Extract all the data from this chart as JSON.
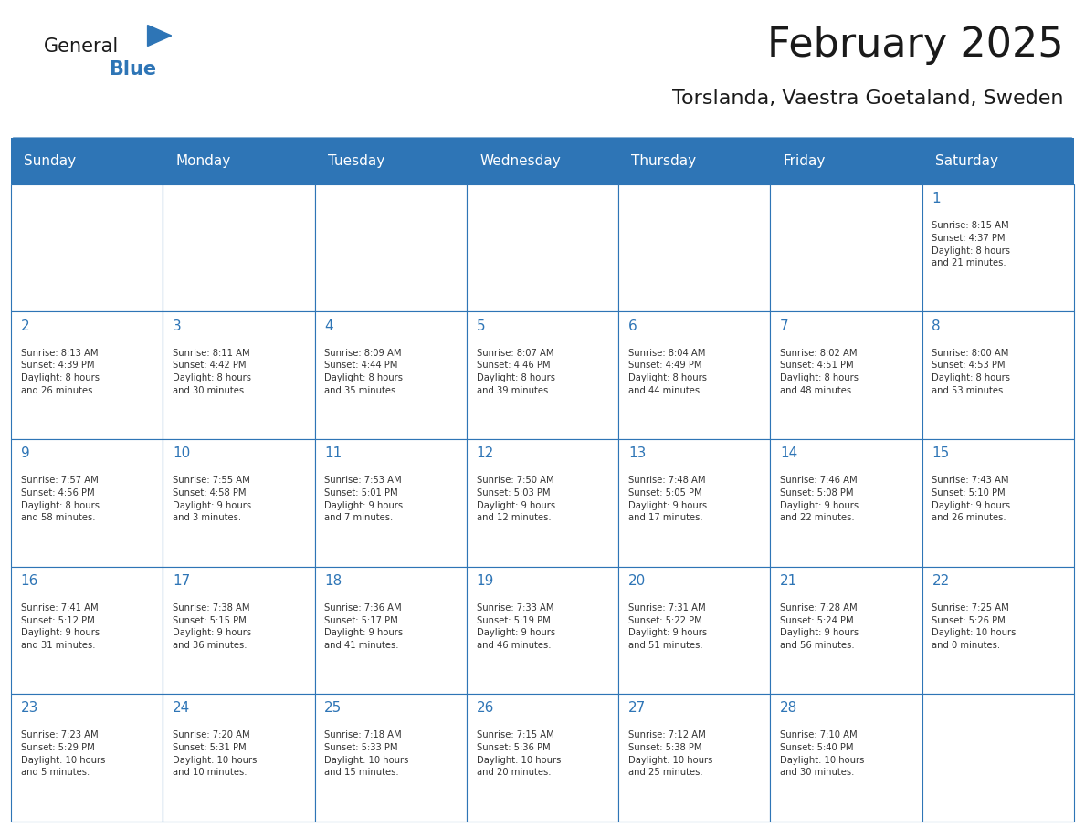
{
  "title": "February 2025",
  "subtitle": "Torslanda, Vaestra Goetaland, Sweden",
  "days_of_week": [
    "Sunday",
    "Monday",
    "Tuesday",
    "Wednesday",
    "Thursday",
    "Friday",
    "Saturday"
  ],
  "header_bg": "#2E75B6",
  "header_text": "#FFFFFF",
  "cell_bg": "#FFFFFF",
  "cell_border": "#2E75B6",
  "day_num_color": "#2E75B6",
  "info_color": "#333333",
  "title_color": "#1a1a1a",
  "subtitle_color": "#1a1a1a",
  "logo_general_color": "#1a1a1a",
  "logo_blue_color": "#2E75B6",
  "calendar_data": [
    [
      {
        "day": "",
        "info": ""
      },
      {
        "day": "",
        "info": ""
      },
      {
        "day": "",
        "info": ""
      },
      {
        "day": "",
        "info": ""
      },
      {
        "day": "",
        "info": ""
      },
      {
        "day": "",
        "info": ""
      },
      {
        "day": "1",
        "info": "Sunrise: 8:15 AM\nSunset: 4:37 PM\nDaylight: 8 hours\nand 21 minutes."
      }
    ],
    [
      {
        "day": "2",
        "info": "Sunrise: 8:13 AM\nSunset: 4:39 PM\nDaylight: 8 hours\nand 26 minutes."
      },
      {
        "day": "3",
        "info": "Sunrise: 8:11 AM\nSunset: 4:42 PM\nDaylight: 8 hours\nand 30 minutes."
      },
      {
        "day": "4",
        "info": "Sunrise: 8:09 AM\nSunset: 4:44 PM\nDaylight: 8 hours\nand 35 minutes."
      },
      {
        "day": "5",
        "info": "Sunrise: 8:07 AM\nSunset: 4:46 PM\nDaylight: 8 hours\nand 39 minutes."
      },
      {
        "day": "6",
        "info": "Sunrise: 8:04 AM\nSunset: 4:49 PM\nDaylight: 8 hours\nand 44 minutes."
      },
      {
        "day": "7",
        "info": "Sunrise: 8:02 AM\nSunset: 4:51 PM\nDaylight: 8 hours\nand 48 minutes."
      },
      {
        "day": "8",
        "info": "Sunrise: 8:00 AM\nSunset: 4:53 PM\nDaylight: 8 hours\nand 53 minutes."
      }
    ],
    [
      {
        "day": "9",
        "info": "Sunrise: 7:57 AM\nSunset: 4:56 PM\nDaylight: 8 hours\nand 58 minutes."
      },
      {
        "day": "10",
        "info": "Sunrise: 7:55 AM\nSunset: 4:58 PM\nDaylight: 9 hours\nand 3 minutes."
      },
      {
        "day": "11",
        "info": "Sunrise: 7:53 AM\nSunset: 5:01 PM\nDaylight: 9 hours\nand 7 minutes."
      },
      {
        "day": "12",
        "info": "Sunrise: 7:50 AM\nSunset: 5:03 PM\nDaylight: 9 hours\nand 12 minutes."
      },
      {
        "day": "13",
        "info": "Sunrise: 7:48 AM\nSunset: 5:05 PM\nDaylight: 9 hours\nand 17 minutes."
      },
      {
        "day": "14",
        "info": "Sunrise: 7:46 AM\nSunset: 5:08 PM\nDaylight: 9 hours\nand 22 minutes."
      },
      {
        "day": "15",
        "info": "Sunrise: 7:43 AM\nSunset: 5:10 PM\nDaylight: 9 hours\nand 26 minutes."
      }
    ],
    [
      {
        "day": "16",
        "info": "Sunrise: 7:41 AM\nSunset: 5:12 PM\nDaylight: 9 hours\nand 31 minutes."
      },
      {
        "day": "17",
        "info": "Sunrise: 7:38 AM\nSunset: 5:15 PM\nDaylight: 9 hours\nand 36 minutes."
      },
      {
        "day": "18",
        "info": "Sunrise: 7:36 AM\nSunset: 5:17 PM\nDaylight: 9 hours\nand 41 minutes."
      },
      {
        "day": "19",
        "info": "Sunrise: 7:33 AM\nSunset: 5:19 PM\nDaylight: 9 hours\nand 46 minutes."
      },
      {
        "day": "20",
        "info": "Sunrise: 7:31 AM\nSunset: 5:22 PM\nDaylight: 9 hours\nand 51 minutes."
      },
      {
        "day": "21",
        "info": "Sunrise: 7:28 AM\nSunset: 5:24 PM\nDaylight: 9 hours\nand 56 minutes."
      },
      {
        "day": "22",
        "info": "Sunrise: 7:25 AM\nSunset: 5:26 PM\nDaylight: 10 hours\nand 0 minutes."
      }
    ],
    [
      {
        "day": "23",
        "info": "Sunrise: 7:23 AM\nSunset: 5:29 PM\nDaylight: 10 hours\nand 5 minutes."
      },
      {
        "day": "24",
        "info": "Sunrise: 7:20 AM\nSunset: 5:31 PM\nDaylight: 10 hours\nand 10 minutes."
      },
      {
        "day": "25",
        "info": "Sunrise: 7:18 AM\nSunset: 5:33 PM\nDaylight: 10 hours\nand 15 minutes."
      },
      {
        "day": "26",
        "info": "Sunrise: 7:15 AM\nSunset: 5:36 PM\nDaylight: 10 hours\nand 20 minutes."
      },
      {
        "day": "27",
        "info": "Sunrise: 7:12 AM\nSunset: 5:38 PM\nDaylight: 10 hours\nand 25 minutes."
      },
      {
        "day": "28",
        "info": "Sunrise: 7:10 AM\nSunset: 5:40 PM\nDaylight: 10 hours\nand 30 minutes."
      },
      {
        "day": "",
        "info": ""
      }
    ]
  ]
}
